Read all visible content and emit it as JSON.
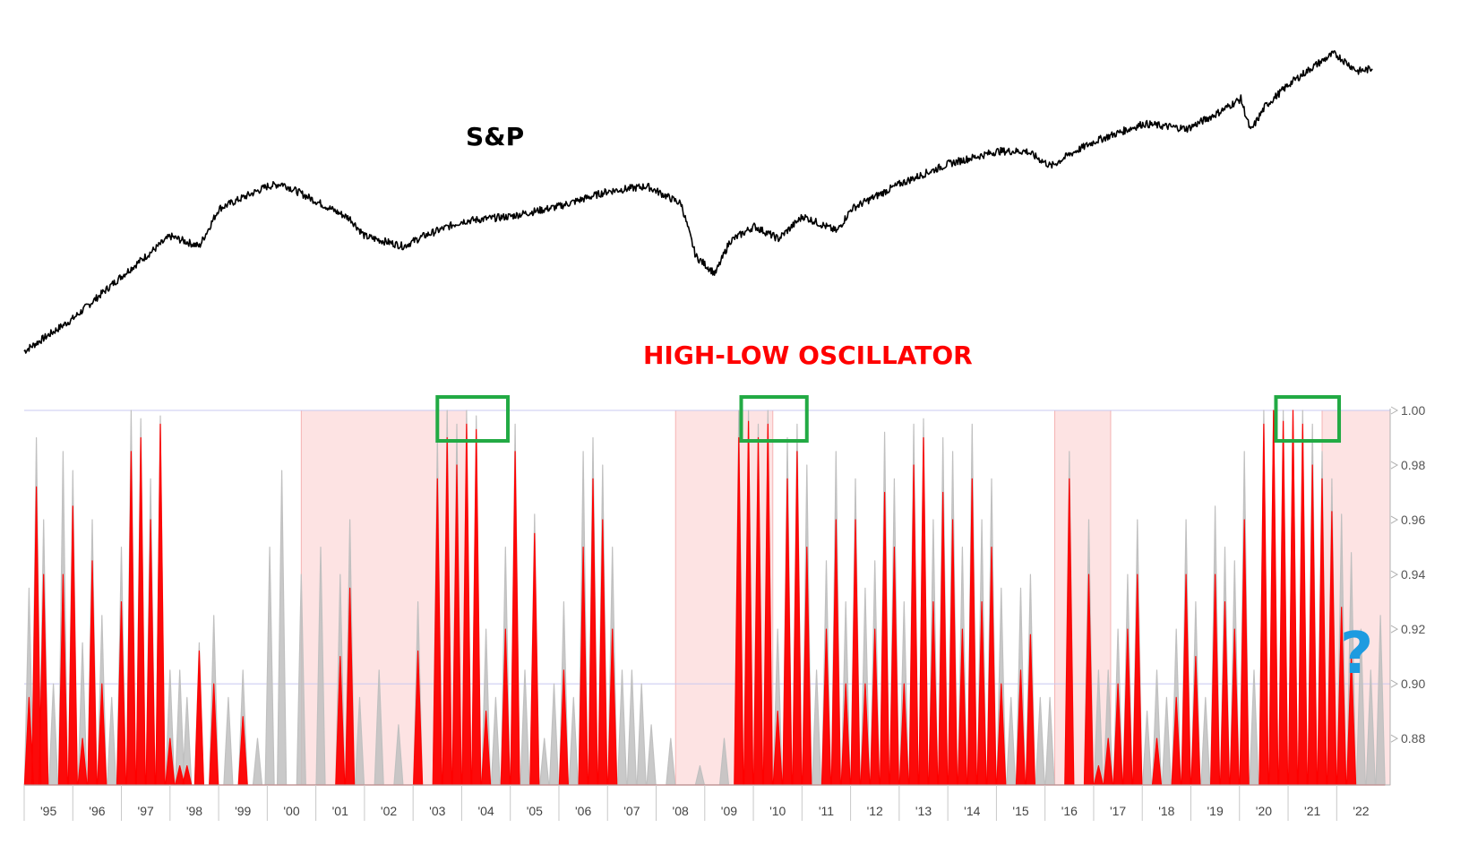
{
  "chart_data": [
    {
      "type": "line",
      "title": "S&P",
      "colors": {
        "line": "#000000"
      },
      "x": [
        1995.0,
        1996.0,
        1997.0,
        1998.0,
        1998.6,
        1999.0,
        2000.0,
        2000.3,
        2001.0,
        2001.7,
        2002.0,
        2002.8,
        2003.2,
        2004.0,
        2005.0,
        2006.0,
        2007.0,
        2007.8,
        2008.5,
        2008.8,
        2009.2,
        2009.5,
        2010.0,
        2010.5,
        2011.0,
        2011.7,
        2012.0,
        2013.0,
        2014.0,
        2015.0,
        2015.6,
        2016.1,
        2016.5,
        2017.0,
        2018.0,
        2018.9,
        2019.5,
        2020.0,
        2020.2,
        2020.5,
        2021.0,
        2021.5,
        2021.9,
        2022.0,
        2022.4,
        2022.7
      ],
      "y": [
        0.0,
        0.13,
        0.3,
        0.46,
        0.42,
        0.57,
        0.66,
        0.67,
        0.6,
        0.53,
        0.46,
        0.42,
        0.46,
        0.52,
        0.54,
        0.58,
        0.64,
        0.66,
        0.59,
        0.38,
        0.31,
        0.44,
        0.5,
        0.45,
        0.54,
        0.48,
        0.57,
        0.67,
        0.75,
        0.8,
        0.8,
        0.74,
        0.79,
        0.84,
        0.91,
        0.89,
        0.95,
        1.01,
        0.88,
        0.98,
        1.07,
        1.14,
        1.19,
        1.18,
        1.12,
        1.13
      ]
    },
    {
      "type": "area",
      "title": "HIGH-LOW OSCILLATOR",
      "x_ticks": [
        "'95",
        "'96",
        "'97",
        "'98",
        "'99",
        "'00",
        "'01",
        "'02",
        "'03",
        "'04",
        "'05",
        "'06",
        "'07",
        "'08",
        "'09",
        "'10",
        "'11",
        "'12",
        "'13",
        "'14",
        "'15",
        "'16",
        "'17",
        "'18",
        "'19",
        "'20",
        "'21",
        "'22"
      ],
      "y_ticks": [
        "1.00",
        "0.98",
        "0.96",
        "0.94",
        "0.92",
        "0.90",
        "0.88"
      ],
      "ylim": [
        0.863,
        1.0
      ],
      "xlim": [
        1994.5,
        2022.6
      ],
      "reference_lines": [
        0.9,
        1.0
      ],
      "shaded_periods": [
        [
          2000.2,
          2003.6
        ],
        [
          2007.9,
          2009.9
        ],
        [
          2015.7,
          2016.85
        ],
        [
          2021.2,
          2022.6
        ]
      ],
      "highlight_boxes": [
        [
          2003.0,
          2004.45
        ],
        [
          2009.25,
          2010.6
        ],
        [
          2020.25,
          2021.55
        ]
      ],
      "annotation": "?",
      "series": [
        {
          "color": "#ff0000",
          "x": [
            1994.6,
            1994.75,
            1994.9,
            1995.1,
            1995.3,
            1995.5,
            1995.7,
            1995.9,
            1996.1,
            1996.3,
            1996.5,
            1996.7,
            1996.9,
            1997.1,
            1997.3,
            1997.5,
            1997.7,
            1997.85,
            1998.1,
            1998.4,
            1998.7,
            1999.0,
            1999.3,
            1999.55,
            1999.8,
            2000.2,
            2000.6,
            2001.0,
            2001.2,
            2001.4,
            2001.8,
            2002.2,
            2002.6,
            2003.0,
            2003.2,
            2003.4,
            2003.6,
            2003.8,
            2004.0,
            2004.2,
            2004.4,
            2004.6,
            2004.8,
            2005.0,
            2005.2,
            2005.4,
            2005.6,
            2005.8,
            2006.0,
            2006.2,
            2006.4,
            2006.6,
            2006.8,
            2007.0,
            2007.2,
            2007.4,
            2007.8,
            2008.4,
            2008.9,
            2009.2,
            2009.4,
            2009.6,
            2009.8,
            2010.0,
            2010.2,
            2010.4,
            2010.6,
            2010.8,
            2011.0,
            2011.2,
            2011.4,
            2011.6,
            2011.8,
            2012.0,
            2012.2,
            2012.4,
            2012.6,
            2012.8,
            2013.0,
            2013.2,
            2013.4,
            2013.6,
            2013.8,
            2014.0,
            2014.2,
            2014.4,
            2014.6,
            2014.8,
            2015.0,
            2015.2,
            2015.4,
            2015.6,
            2016.0,
            2016.4,
            2016.6,
            2016.8,
            2017.0,
            2017.2,
            2017.4,
            2017.6,
            2017.8,
            2018.0,
            2018.2,
            2018.4,
            2018.6,
            2018.8,
            2019.0,
            2019.2,
            2019.4,
            2019.6,
            2019.8,
            2020.0,
            2020.2,
            2020.4,
            2020.6,
            2020.8,
            2021.0,
            2021.2,
            2021.4,
            2021.6,
            2021.8,
            2022.0,
            2022.2,
            2022.4
          ],
          "y": [
            0.895,
            0.972,
            0.94,
            0.863,
            0.94,
            0.965,
            0.88,
            0.945,
            0.9,
            0.863,
            0.93,
            0.985,
            0.99,
            0.96,
            0.995,
            0.88,
            0.87,
            0.87,
            0.912,
            0.9,
            0.863,
            0.888,
            0.863,
            0.863,
            0.863,
            0.863,
            0.863,
            0.91,
            0.935,
            0.863,
            0.863,
            0.863,
            0.912,
            0.975,
            0.99,
            0.98,
            0.995,
            0.993,
            0.89,
            0.863,
            0.92,
            0.985,
            0.863,
            0.955,
            0.863,
            0.863,
            0.905,
            0.863,
            0.95,
            0.975,
            0.96,
            0.92,
            0.863,
            0.863,
            0.863,
            0.863,
            0.863,
            0.863,
            0.863,
            0.99,
            0.996,
            0.99,
            0.995,
            0.89,
            0.975,
            0.985,
            0.95,
            0.863,
            0.92,
            0.96,
            0.9,
            0.96,
            0.9,
            0.92,
            0.97,
            0.95,
            0.9,
            0.98,
            0.99,
            0.93,
            0.97,
            0.96,
            0.92,
            0.975,
            0.93,
            0.95,
            0.9,
            0.863,
            0.905,
            0.918,
            0.863,
            0.863,
            0.975,
            0.94,
            0.87,
            0.88,
            0.9,
            0.92,
            0.94,
            0.863,
            0.88,
            0.863,
            0.895,
            0.94,
            0.91,
            0.863,
            0.94,
            0.93,
            0.92,
            0.96,
            0.863,
            0.995,
            1.0,
            0.996,
            1.0,
            0.995,
            0.98,
            0.975,
            0.963,
            0.928,
            0.91,
            0.863,
            0.863,
            0.863
          ]
        },
        {
          "color": "#c0c0c0",
          "x": [
            1994.6,
            1994.75,
            1994.9,
            1995.1,
            1995.3,
            1995.5,
            1995.7,
            1995.9,
            1996.1,
            1996.3,
            1996.5,
            1996.7,
            1996.9,
            1997.1,
            1997.3,
            1997.5,
            1997.7,
            1997.85,
            1998.1,
            1998.4,
            1998.7,
            1999.0,
            1999.3,
            1999.55,
            1999.8,
            2000.2,
            2000.6,
            2001.0,
            2001.2,
            2001.4,
            2001.8,
            2002.2,
            2002.6,
            2003.0,
            2003.2,
            2003.4,
            2003.6,
            2003.8,
            2004.0,
            2004.2,
            2004.4,
            2004.6,
            2004.8,
            2005.0,
            2005.2,
            2005.4,
            2005.6,
            2005.8,
            2006.0,
            2006.2,
            2006.4,
            2006.6,
            2006.8,
            2007.0,
            2007.2,
            2007.4,
            2007.8,
            2008.4,
            2008.9,
            2009.2,
            2009.4,
            2009.6,
            2009.8,
            2010.0,
            2010.2,
            2010.4,
            2010.6,
            2010.8,
            2011.0,
            2011.2,
            2011.4,
            2011.6,
            2011.8,
            2012.0,
            2012.2,
            2012.4,
            2012.6,
            2012.8,
            2013.0,
            2013.2,
            2013.4,
            2013.6,
            2013.8,
            2014.0,
            2014.2,
            2014.4,
            2014.6,
            2014.8,
            2015.0,
            2015.2,
            2015.4,
            2015.6,
            2016.0,
            2016.4,
            2016.6,
            2016.8,
            2017.0,
            2017.2,
            2017.4,
            2017.6,
            2017.8,
            2018.0,
            2018.2,
            2018.4,
            2018.6,
            2018.8,
            2019.0,
            2019.2,
            2019.4,
            2019.6,
            2019.8,
            2020.0,
            2020.2,
            2020.4,
            2020.6,
            2020.8,
            2021.0,
            2021.2,
            2021.4,
            2021.6,
            2021.8,
            2022.0,
            2022.2,
            2022.4
          ],
          "y": [
            0.935,
            0.99,
            0.96,
            0.9,
            0.985,
            0.978,
            0.915,
            0.96,
            0.925,
            0.895,
            0.95,
            1.0,
            0.997,
            0.975,
            0.998,
            0.905,
            0.905,
            0.895,
            0.915,
            0.925,
            0.895,
            0.905,
            0.88,
            0.95,
            0.978,
            0.94,
            0.95,
            0.94,
            0.96,
            0.895,
            0.905,
            0.885,
            0.93,
            0.99,
            1.0,
            0.995,
            1.0,
            0.998,
            0.92,
            0.895,
            0.95,
            0.995,
            0.905,
            0.962,
            0.88,
            0.9,
            0.93,
            0.895,
            0.985,
            0.99,
            0.98,
            0.95,
            0.905,
            0.905,
            0.9,
            0.885,
            0.88,
            0.87,
            0.88,
            1.0,
            1.0,
            0.995,
            1.0,
            0.92,
            0.99,
            0.995,
            0.98,
            0.905,
            0.945,
            0.985,
            0.93,
            0.975,
            0.935,
            0.945,
            0.992,
            0.975,
            0.93,
            0.995,
            0.997,
            0.96,
            0.99,
            0.985,
            0.95,
            0.995,
            0.96,
            0.975,
            0.935,
            0.895,
            0.935,
            0.94,
            0.895,
            0.895,
            0.985,
            0.96,
            0.905,
            0.905,
            0.92,
            0.94,
            0.96,
            0.89,
            0.905,
            0.895,
            0.92,
            0.96,
            0.93,
            0.895,
            0.965,
            0.95,
            0.945,
            0.985,
            0.905,
            1.0,
            1.0,
            1.0,
            1.0,
            1.0,
            0.995,
            0.985,
            0.975,
            0.962,
            0.948,
            0.92,
            0.905,
            0.925
          ]
        }
      ]
    }
  ]
}
